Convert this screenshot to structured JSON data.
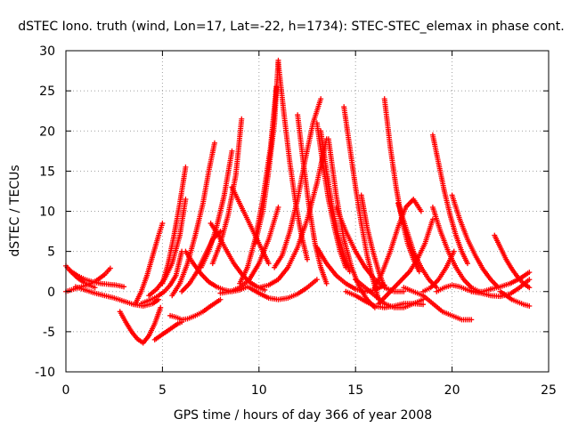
{
  "chart_data": {
    "type": "scatter",
    "title": "dSTEC Iono. truth (wind, Lon=17, Lat=-22, h=1734): STEC-STEC_elemax in phase cont.",
    "xlabel": "GPS time / hours of day 366 of year 2008",
    "ylabel": "dSTEC  / TECUs",
    "xlim": [
      0,
      25
    ],
    "ylim": [
      -10,
      30
    ],
    "xticks": [
      0,
      5,
      10,
      15,
      20,
      25
    ],
    "yticks": [
      -10,
      -5,
      0,
      5,
      10,
      15,
      20,
      25,
      30
    ],
    "xtick_labels": [
      "0",
      "5",
      "10",
      "15",
      "20",
      "25"
    ],
    "ytick_labels": [
      "-10",
      "-5",
      "0",
      "5",
      "10",
      "15",
      "20",
      "25",
      "30"
    ],
    "grid": true,
    "legend": "none",
    "marker": "plus",
    "color": "#ff0000",
    "series": [
      {
        "x": [
          0.0,
          0.3,
          0.6,
          0.9,
          1.2,
          1.5
        ],
        "y": [
          3.2,
          2.4,
          1.7,
          1.2,
          0.8,
          0.5
        ]
      },
      {
        "x": [
          0.0,
          0.4,
          0.8,
          1.2,
          1.6,
          2.0,
          2.3
        ],
        "y": [
          0.0,
          0.3,
          0.6,
          0.9,
          1.4,
          2.1,
          2.9
        ]
      },
      {
        "x": [
          0.2,
          0.6,
          1.0,
          1.4,
          1.8,
          2.2,
          2.6,
          3.0
        ],
        "y": [
          2.6,
          2.0,
          1.5,
          1.2,
          1.0,
          0.9,
          0.8,
          0.6
        ]
      },
      {
        "x": [
          0.5,
          1.0,
          1.5,
          2.0,
          2.5,
          3.0,
          3.5,
          4.0,
          4.5,
          4.8
        ],
        "y": [
          0.6,
          0.2,
          -0.2,
          -0.5,
          -0.8,
          -1.2,
          -1.6,
          -1.8,
          -1.5,
          -1.0
        ]
      },
      {
        "x": [
          2.8,
          3.1,
          3.4,
          3.7,
          4.0,
          4.3,
          4.6,
          4.9
        ],
        "y": [
          -2.5,
          -3.8,
          -5.0,
          -5.9,
          -6.4,
          -5.5,
          -4.0,
          -2.0
        ]
      },
      {
        "x": [
          3.6,
          3.9,
          4.2,
          4.5,
          4.8,
          5.0
        ],
        "y": [
          -1.5,
          0.0,
          2.0,
          4.5,
          7.0,
          8.5
        ]
      },
      {
        "x": [
          4.6,
          4.9,
          5.2,
          5.5,
          5.8,
          6.0
        ],
        "y": [
          -6.0,
          -5.5,
          -5.0,
          -4.5,
          -4.0,
          -3.8
        ]
      },
      {
        "x": [
          3.9,
          4.2,
          4.5,
          4.8,
          5.1,
          5.4,
          5.7,
          6.0
        ],
        "y": [
          -1.5,
          -1.2,
          -0.9,
          -0.5,
          0.0,
          0.8,
          2.0,
          5.0
        ]
      },
      {
        "x": [
          4.3,
          4.7,
          5.1,
          5.5,
          5.9,
          6.2
        ],
        "y": [
          -0.5,
          0.3,
          1.5,
          3.5,
          7.0,
          11.5
        ]
      },
      {
        "x": [
          5.0,
          5.3,
          5.6,
          5.9,
          6.2
        ],
        "y": [
          1.0,
          3.5,
          7.0,
          11.0,
          15.5
        ]
      },
      {
        "x": [
          5.4,
          5.7,
          6.0,
          6.3,
          6.7,
          7.1,
          7.5,
          8.0
        ],
        "y": [
          -3.0,
          -3.2,
          -3.5,
          -3.4,
          -3.0,
          -2.5,
          -1.8,
          -1.0
        ]
      },
      {
        "x": [
          5.5,
          5.9,
          6.3,
          6.7,
          7.1,
          7.4,
          7.7
        ],
        "y": [
          -0.5,
          1.0,
          3.5,
          7.0,
          11.0,
          15.0,
          18.5
        ]
      },
      {
        "x": [
          6.0,
          6.4,
          6.8,
          7.2,
          7.6,
          8.0
        ],
        "y": [
          0.0,
          1.0,
          2.5,
          4.5,
          6.5,
          7.5
        ]
      },
      {
        "x": [
          7.0,
          7.4,
          7.8,
          8.2,
          8.6
        ],
        "y": [
          3.0,
          5.0,
          8.0,
          12.0,
          17.5
        ]
      },
      {
        "x": [
          7.6,
          8.0,
          8.4,
          8.8,
          9.1
        ],
        "y": [
          3.5,
          6.0,
          9.5,
          14.5,
          21.5
        ]
      },
      {
        "x": [
          6.2,
          6.6,
          7.0,
          7.4,
          7.8,
          8.2,
          8.6,
          9.0,
          9.4
        ],
        "y": [
          5.0,
          3.5,
          2.2,
          1.2,
          0.6,
          0.2,
          0.0,
          0.2,
          0.6
        ]
      },
      {
        "x": [
          7.5,
          7.9,
          8.3,
          8.7,
          9.1,
          9.5,
          9.9,
          10.3
        ],
        "y": [
          8.5,
          7.0,
          5.2,
          3.5,
          2.2,
          1.2,
          0.6,
          0.2
        ]
      },
      {
        "x": [
          8.6,
          9.0,
          9.4,
          9.8,
          10.2,
          10.5
        ],
        "y": [
          13.0,
          11.0,
          9.0,
          7.0,
          5.0,
          3.5
        ]
      },
      {
        "x": [
          8.0,
          8.5,
          9.0,
          9.5,
          10.0,
          10.5,
          11.0
        ],
        "y": [
          -0.2,
          0.0,
          0.5,
          1.5,
          3.5,
          6.5,
          10.5
        ]
      },
      {
        "x": [
          9.0,
          9.4,
          9.8,
          10.2,
          10.6,
          10.9
        ],
        "y": [
          1.0,
          3.0,
          6.5,
          11.5,
          18.0,
          25.5
        ]
      },
      {
        "x": [
          9.8,
          10.2,
          10.5,
          10.8,
          11.0
        ],
        "y": [
          6.0,
          10.0,
          15.0,
          21.0,
          28.8
        ]
      },
      {
        "x": [
          11.0,
          11.3,
          11.6,
          11.9,
          12.2,
          12.5
        ],
        "y": [
          28.5,
          22.0,
          16.0,
          11.0,
          7.0,
          4.0
        ]
      },
      {
        "x": [
          10.8,
          11.2,
          11.6,
          12.0,
          12.4,
          12.8,
          13.2
        ],
        "y": [
          3.0,
          4.5,
          7.5,
          11.5,
          16.5,
          21.0,
          24.0
        ]
      },
      {
        "x": [
          10.0,
          10.5,
          11.0,
          11.5,
          12.0,
          12.5,
          13.0,
          13.5
        ],
        "y": [
          0.5,
          0.8,
          1.5,
          3.0,
          5.5,
          9.0,
          13.5,
          19.0
        ]
      },
      {
        "x": [
          9.5,
          10.0,
          10.5,
          11.0,
          11.5,
          12.0,
          12.5,
          13.0
        ],
        "y": [
          0.5,
          -0.2,
          -0.8,
          -1.0,
          -0.8,
          -0.3,
          0.5,
          1.5
        ]
      },
      {
        "x": [
          12.0,
          12.3,
          12.6,
          12.9,
          13.2,
          13.5
        ],
        "y": [
          22.0,
          16.0,
          10.5,
          6.0,
          3.0,
          1.0
        ]
      },
      {
        "x": [
          13.0,
          13.3,
          13.6,
          13.9,
          14.2,
          14.5
        ],
        "y": [
          21.0,
          16.0,
          11.5,
          8.0,
          5.0,
          3.0
        ]
      },
      {
        "x": [
          13.2,
          13.5,
          13.8,
          14.1,
          14.4,
          14.7
        ],
        "y": [
          20.0,
          15.0,
          10.5,
          7.0,
          4.5,
          2.5
        ]
      },
      {
        "x": [
          13.6,
          14.0,
          14.4,
          14.8,
          15.2,
          15.6,
          16.0
        ],
        "y": [
          19.0,
          12.0,
          6.5,
          3.0,
          0.5,
          -1.0,
          -2.0
        ]
      },
      {
        "x": [
          14.4,
          14.7,
          15.0,
          15.3,
          15.6,
          15.9,
          16.2
        ],
        "y": [
          23.0,
          18.0,
          13.0,
          8.5,
          4.5,
          1.5,
          -1.0
        ]
      },
      {
        "x": [
          13.0,
          13.5,
          14.0,
          14.5,
          15.0,
          15.5,
          16.0,
          16.5
        ],
        "y": [
          5.5,
          3.5,
          2.0,
          1.0,
          0.3,
          0.0,
          0.2,
          0.8
        ]
      },
      {
        "x": [
          14.0,
          14.5,
          15.0,
          15.5,
          16.0,
          16.5,
          17.0,
          17.5
        ],
        "y": [
          10.5,
          7.5,
          5.0,
          3.0,
          1.5,
          0.5,
          0.0,
          0.0
        ]
      },
      {
        "x": [
          15.3,
          15.6,
          15.9,
          16.2,
          16.5
        ],
        "y": [
          12.0,
          8.0,
          5.0,
          2.5,
          0.5
        ]
      },
      {
        "x": [
          14.5,
          15.0,
          15.5,
          16.0,
          16.5,
          17.0,
          17.5,
          18.0,
          18.5
        ],
        "y": [
          0.0,
          -0.5,
          -1.2,
          -1.8,
          -2.0,
          -1.8,
          -1.5,
          -1.5,
          -1.6
        ]
      },
      {
        "x": [
          15.0,
          15.5,
          16.0,
          16.5,
          17.0,
          17.5,
          18.0,
          18.5
        ],
        "y": [
          1.5,
          0.5,
          -0.5,
          -1.5,
          -2.0,
          -2.0,
          -1.5,
          -1.0
        ]
      },
      {
        "x": [
          16.5,
          16.8,
          17.1,
          17.4,
          17.7,
          18.0,
          18.3
        ],
        "y": [
          24.0,
          18.0,
          13.0,
          9.0,
          6.0,
          4.0,
          2.5
        ]
      },
      {
        "x": [
          16.0,
          16.4,
          16.8,
          17.2,
          17.6,
          18.0,
          18.4
        ],
        "y": [
          0.5,
          2.5,
          5.0,
          8.0,
          10.5,
          11.5,
          10.0
        ]
      },
      {
        "x": [
          17.2,
          17.6,
          18.0,
          18.4,
          18.8,
          19.2
        ],
        "y": [
          11.0,
          8.0,
          5.0,
          3.0,
          1.5,
          0.5
        ]
      },
      {
        "x": [
          16.2,
          16.6,
          17.0,
          17.4,
          17.8,
          18.2,
          18.6,
          19.0
        ],
        "y": [
          -1.5,
          -0.5,
          0.5,
          1.5,
          2.5,
          4.0,
          6.0,
          9.0
        ]
      },
      {
        "x": [
          17.5,
          18.0,
          18.5,
          19.0,
          19.5,
          20.0,
          20.5,
          21.0
        ],
        "y": [
          0.5,
          0.0,
          -0.5,
          -1.5,
          -2.5,
          -3.0,
          -3.5,
          -3.5
        ]
      },
      {
        "x": [
          19.0,
          19.3,
          19.6,
          19.9,
          20.2,
          20.5,
          20.8
        ],
        "y": [
          19.5,
          16.0,
          12.5,
          9.5,
          7.0,
          5.0,
          3.5
        ]
      },
      {
        "x": [
          19.0,
          19.4,
          19.8,
          20.2,
          20.6,
          21.0,
          21.4
        ],
        "y": [
          10.5,
          7.5,
          5.0,
          3.0,
          1.5,
          0.5,
          0.0
        ]
      },
      {
        "x": [
          20.0,
          20.4,
          20.8,
          21.2,
          21.6,
          22.0,
          22.4
        ],
        "y": [
          12.0,
          9.0,
          6.5,
          4.5,
          2.8,
          1.5,
          0.5
        ]
      },
      {
        "x": [
          18.5,
          18.9,
          19.3,
          19.7,
          20.1
        ],
        "y": [
          0.0,
          0.5,
          1.5,
          3.0,
          5.0
        ]
      },
      {
        "x": [
          19.2,
          19.6,
          20.0,
          20.4,
          20.8,
          21.2,
          21.6,
          22.0
        ],
        "y": [
          0.0,
          0.5,
          0.8,
          0.6,
          0.2,
          0.0,
          0.0,
          0.3
        ]
      },
      {
        "x": [
          22.2,
          22.5,
          22.8,
          23.1,
          23.4,
          23.7,
          24.0
        ],
        "y": [
          7.0,
          5.5,
          4.0,
          2.8,
          1.8,
          1.0,
          0.5
        ]
      },
      {
        "x": [
          21.0,
          21.5,
          22.0,
          22.5,
          23.0,
          23.5,
          24.0
        ],
        "y": [
          0.0,
          -0.2,
          -0.5,
          -0.6,
          -0.3,
          0.5,
          1.5
        ]
      },
      {
        "x": [
          22.5,
          22.8,
          23.1,
          23.4,
          23.7,
          24.0
        ],
        "y": [
          0.0,
          -0.5,
          -1.0,
          -1.3,
          -1.6,
          -1.8
        ]
      },
      {
        "x": [
          22.0,
          22.5,
          23.0,
          23.5,
          24.0
        ],
        "y": [
          0.3,
          0.6,
          1.0,
          1.6,
          2.4
        ]
      }
    ]
  }
}
